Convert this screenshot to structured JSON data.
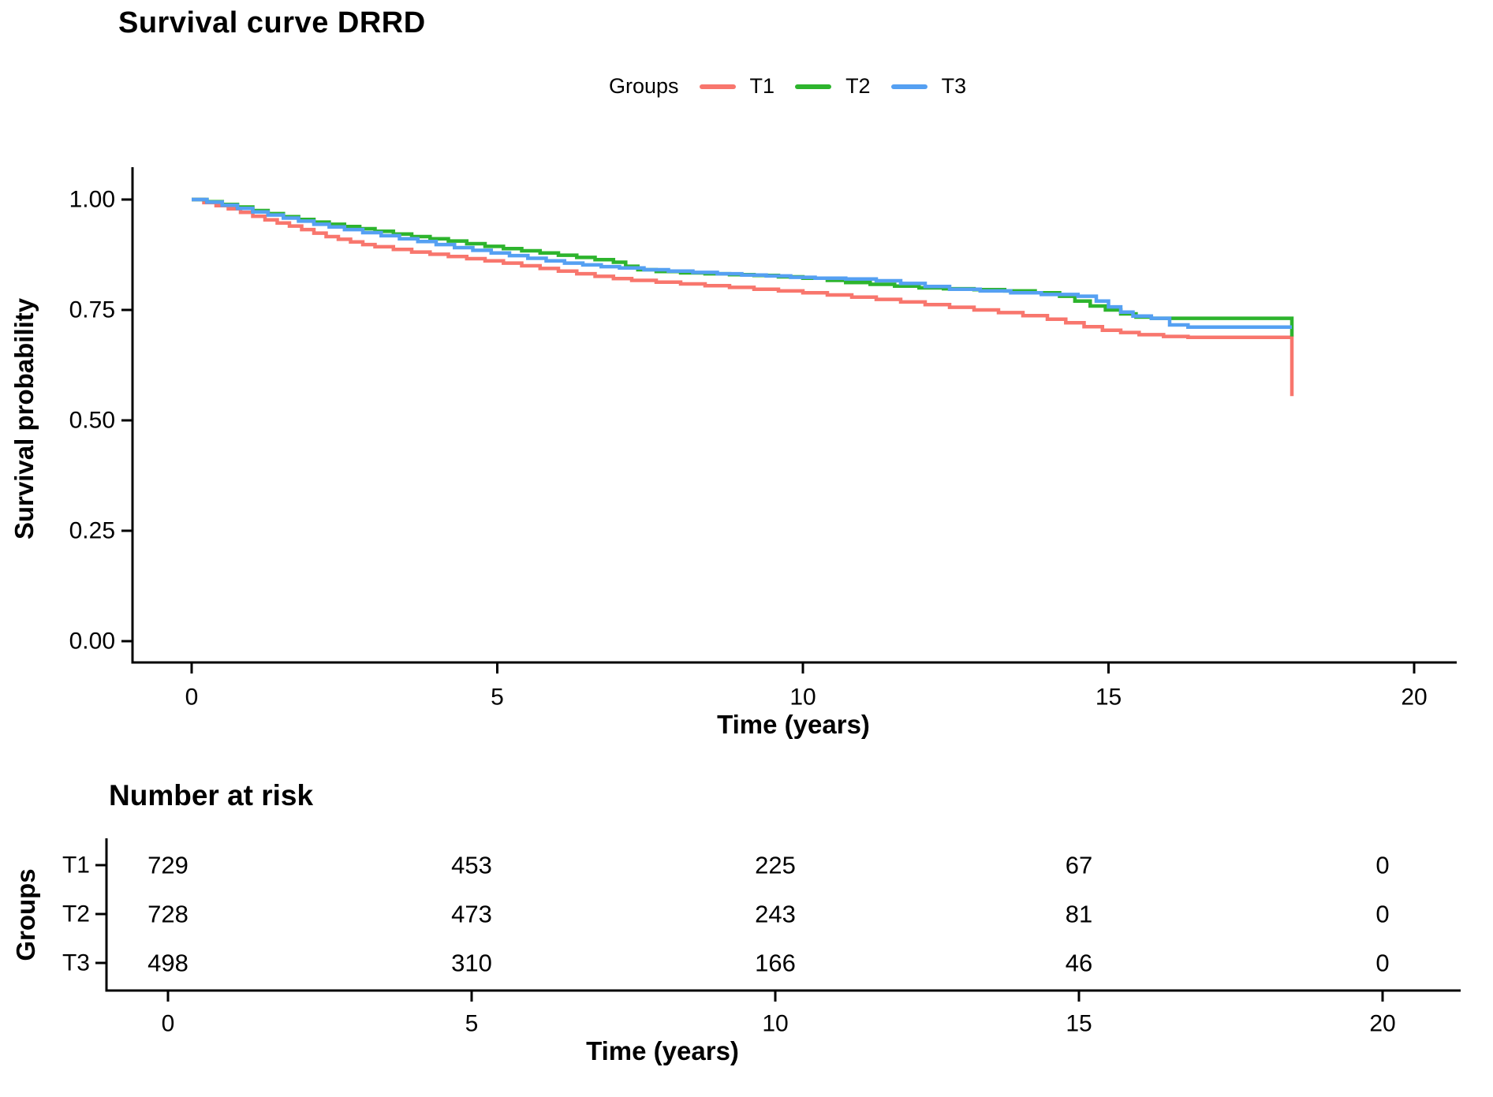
{
  "title": "Survival curve DRRD",
  "legend": {
    "label": "Groups",
    "items": [
      {
        "name": "T1",
        "color": "#F8766D"
      },
      {
        "name": "T2",
        "color": "#2DB42D"
      },
      {
        "name": "T3",
        "color": "#55A0F2"
      }
    ]
  },
  "main_plot": {
    "ylabel": "Survival probability",
    "xlabel": "Time (years)",
    "y_ticks": [
      "1.00",
      "0.75",
      "0.50",
      "0.25",
      "0.00"
    ],
    "x_ticks": [
      "0",
      "5",
      "10",
      "15",
      "20"
    ]
  },
  "risk_table": {
    "title": "Number at risk",
    "ylabel": "Groups",
    "xlabel": "Time (years)",
    "x_ticks": [
      "0",
      "5",
      "10",
      "15",
      "20"
    ],
    "rows": [
      {
        "label": "T1",
        "color": "#F8766D",
        "values": [
          "729",
          "453",
          "225",
          "67",
          "0"
        ]
      },
      {
        "label": "T2",
        "color": "#2DB42D",
        "values": [
          "728",
          "473",
          "243",
          "81",
          "0"
        ]
      },
      {
        "label": "T3",
        "color": "#55A0F2",
        "values": [
          "498",
          "310",
          "166",
          "46",
          "0"
        ]
      }
    ]
  },
  "chart_data": {
    "type": "line",
    "subtype": "kaplan-meier-step",
    "title": "Survival curve DRRD",
    "xlabel": "Time (years)",
    "ylabel": "Survival probability",
    "legend_title": "Groups",
    "legend_position": "top",
    "grid": false,
    "xlim": [
      0,
      20
    ],
    "ylim": [
      0,
      1
    ],
    "x_ticks": [
      0,
      5,
      10,
      15,
      20
    ],
    "y_ticks": [
      0.0,
      0.25,
      0.5,
      0.75,
      1.0
    ],
    "series": [
      {
        "name": "T1",
        "color": "#F8766D",
        "points": [
          [
            0,
            1.0
          ],
          [
            0.2,
            0.993
          ],
          [
            0.4,
            0.986
          ],
          [
            0.6,
            0.979
          ],
          [
            0.8,
            0.971
          ],
          [
            1.0,
            0.962
          ],
          [
            1.2,
            0.954
          ],
          [
            1.4,
            0.947
          ],
          [
            1.6,
            0.94
          ],
          [
            1.8,
            0.932
          ],
          [
            2.0,
            0.924
          ],
          [
            2.2,
            0.916
          ],
          [
            2.4,
            0.91
          ],
          [
            2.6,
            0.904
          ],
          [
            2.8,
            0.898
          ],
          [
            3.0,
            0.893
          ],
          [
            3.3,
            0.887
          ],
          [
            3.6,
            0.881
          ],
          [
            3.9,
            0.876
          ],
          [
            4.2,
            0.871
          ],
          [
            4.5,
            0.866
          ],
          [
            4.8,
            0.861
          ],
          [
            5.1,
            0.856
          ],
          [
            5.4,
            0.85
          ],
          [
            5.7,
            0.844
          ],
          [
            6.0,
            0.838
          ],
          [
            6.3,
            0.832
          ],
          [
            6.6,
            0.826
          ],
          [
            6.9,
            0.821
          ],
          [
            7.2,
            0.817
          ],
          [
            7.6,
            0.813
          ],
          [
            8.0,
            0.809
          ],
          [
            8.4,
            0.805
          ],
          [
            8.8,
            0.801
          ],
          [
            9.2,
            0.797
          ],
          [
            9.6,
            0.793
          ],
          [
            10.0,
            0.789
          ],
          [
            10.4,
            0.784
          ],
          [
            10.8,
            0.779
          ],
          [
            11.2,
            0.774
          ],
          [
            11.6,
            0.768
          ],
          [
            12.0,
            0.762
          ],
          [
            12.4,
            0.756
          ],
          [
            12.8,
            0.75
          ],
          [
            13.2,
            0.744
          ],
          [
            13.6,
            0.737
          ],
          [
            14.0,
            0.729
          ],
          [
            14.3,
            0.721
          ],
          [
            14.6,
            0.712
          ],
          [
            14.9,
            0.704
          ],
          [
            15.2,
            0.699
          ],
          [
            15.5,
            0.694
          ],
          [
            15.9,
            0.69
          ],
          [
            16.3,
            0.688
          ],
          [
            18.0,
            0.688
          ],
          [
            18.0,
            0.555
          ]
        ]
      },
      {
        "name": "T2",
        "color": "#2DB42D",
        "points": [
          [
            0,
            1.0
          ],
          [
            0.25,
            0.995
          ],
          [
            0.5,
            0.989
          ],
          [
            0.75,
            0.983
          ],
          [
            1.0,
            0.975
          ],
          [
            1.25,
            0.968
          ],
          [
            1.5,
            0.961
          ],
          [
            1.75,
            0.955
          ],
          [
            2.0,
            0.949
          ],
          [
            2.25,
            0.944
          ],
          [
            2.5,
            0.939
          ],
          [
            2.75,
            0.934
          ],
          [
            3.0,
            0.928
          ],
          [
            3.3,
            0.922
          ],
          [
            3.6,
            0.916
          ],
          [
            3.9,
            0.911
          ],
          [
            4.2,
            0.906
          ],
          [
            4.5,
            0.9
          ],
          [
            4.8,
            0.894
          ],
          [
            5.1,
            0.889
          ],
          [
            5.4,
            0.884
          ],
          [
            5.7,
            0.879
          ],
          [
            6.0,
            0.874
          ],
          [
            6.3,
            0.869
          ],
          [
            6.6,
            0.864
          ],
          [
            6.9,
            0.858
          ],
          [
            7.1,
            0.849
          ],
          [
            7.3,
            0.841
          ],
          [
            7.6,
            0.837
          ],
          [
            8.0,
            0.834
          ],
          [
            8.4,
            0.832
          ],
          [
            8.8,
            0.83
          ],
          [
            9.2,
            0.828
          ],
          [
            9.6,
            0.825
          ],
          [
            10.0,
            0.822
          ],
          [
            10.4,
            0.817
          ],
          [
            10.7,
            0.812
          ],
          [
            11.1,
            0.808
          ],
          [
            11.5,
            0.804
          ],
          [
            11.9,
            0.8
          ],
          [
            12.3,
            0.798
          ],
          [
            12.8,
            0.796
          ],
          [
            13.3,
            0.793
          ],
          [
            13.8,
            0.789
          ],
          [
            14.2,
            0.781
          ],
          [
            14.45,
            0.77
          ],
          [
            14.7,
            0.759
          ],
          [
            14.95,
            0.75
          ],
          [
            15.2,
            0.741
          ],
          [
            15.45,
            0.734
          ],
          [
            15.7,
            0.731
          ],
          [
            18.0,
            0.731
          ],
          [
            18.0,
            0.69
          ]
        ]
      },
      {
        "name": "T3",
        "color": "#55A0F2",
        "points": [
          [
            0,
            1.0
          ],
          [
            0.25,
            0.994
          ],
          [
            0.5,
            0.987
          ],
          [
            0.75,
            0.98
          ],
          [
            1.0,
            0.972
          ],
          [
            1.25,
            0.965
          ],
          [
            1.5,
            0.958
          ],
          [
            1.75,
            0.951
          ],
          [
            2.0,
            0.944
          ],
          [
            2.25,
            0.938
          ],
          [
            2.5,
            0.932
          ],
          [
            2.8,
            0.925
          ],
          [
            3.1,
            0.918
          ],
          [
            3.4,
            0.911
          ],
          [
            3.7,
            0.905
          ],
          [
            4.0,
            0.898
          ],
          [
            4.3,
            0.891
          ],
          [
            4.6,
            0.885
          ],
          [
            4.9,
            0.879
          ],
          [
            5.2,
            0.873
          ],
          [
            5.5,
            0.867
          ],
          [
            5.8,
            0.861
          ],
          [
            6.1,
            0.856
          ],
          [
            6.4,
            0.852
          ],
          [
            6.7,
            0.848
          ],
          [
            7.0,
            0.845
          ],
          [
            7.4,
            0.841
          ],
          [
            7.8,
            0.838
          ],
          [
            8.2,
            0.835
          ],
          [
            8.6,
            0.832
          ],
          [
            9.0,
            0.829
          ],
          [
            9.4,
            0.827
          ],
          [
            9.8,
            0.824
          ],
          [
            10.2,
            0.822
          ],
          [
            10.7,
            0.82
          ],
          [
            11.2,
            0.816
          ],
          [
            11.6,
            0.81
          ],
          [
            12.0,
            0.803
          ],
          [
            12.4,
            0.797
          ],
          [
            12.9,
            0.793
          ],
          [
            13.4,
            0.789
          ],
          [
            13.9,
            0.785
          ],
          [
            14.5,
            0.781
          ],
          [
            14.8,
            0.77
          ],
          [
            15.0,
            0.757
          ],
          [
            15.2,
            0.745
          ],
          [
            15.4,
            0.736
          ],
          [
            15.7,
            0.731
          ],
          [
            16.0,
            0.716
          ],
          [
            16.3,
            0.711
          ],
          [
            18.0,
            0.711
          ]
        ]
      }
    ],
    "number_at_risk": {
      "times": [
        0,
        5,
        10,
        15,
        20
      ],
      "groups": [
        {
          "name": "T1",
          "counts": [
            729,
            453,
            225,
            67,
            0
          ]
        },
        {
          "name": "T2",
          "counts": [
            728,
            473,
            243,
            81,
            0
          ]
        },
        {
          "name": "T3",
          "counts": [
            498,
            310,
            166,
            46,
            0
          ]
        }
      ]
    }
  }
}
